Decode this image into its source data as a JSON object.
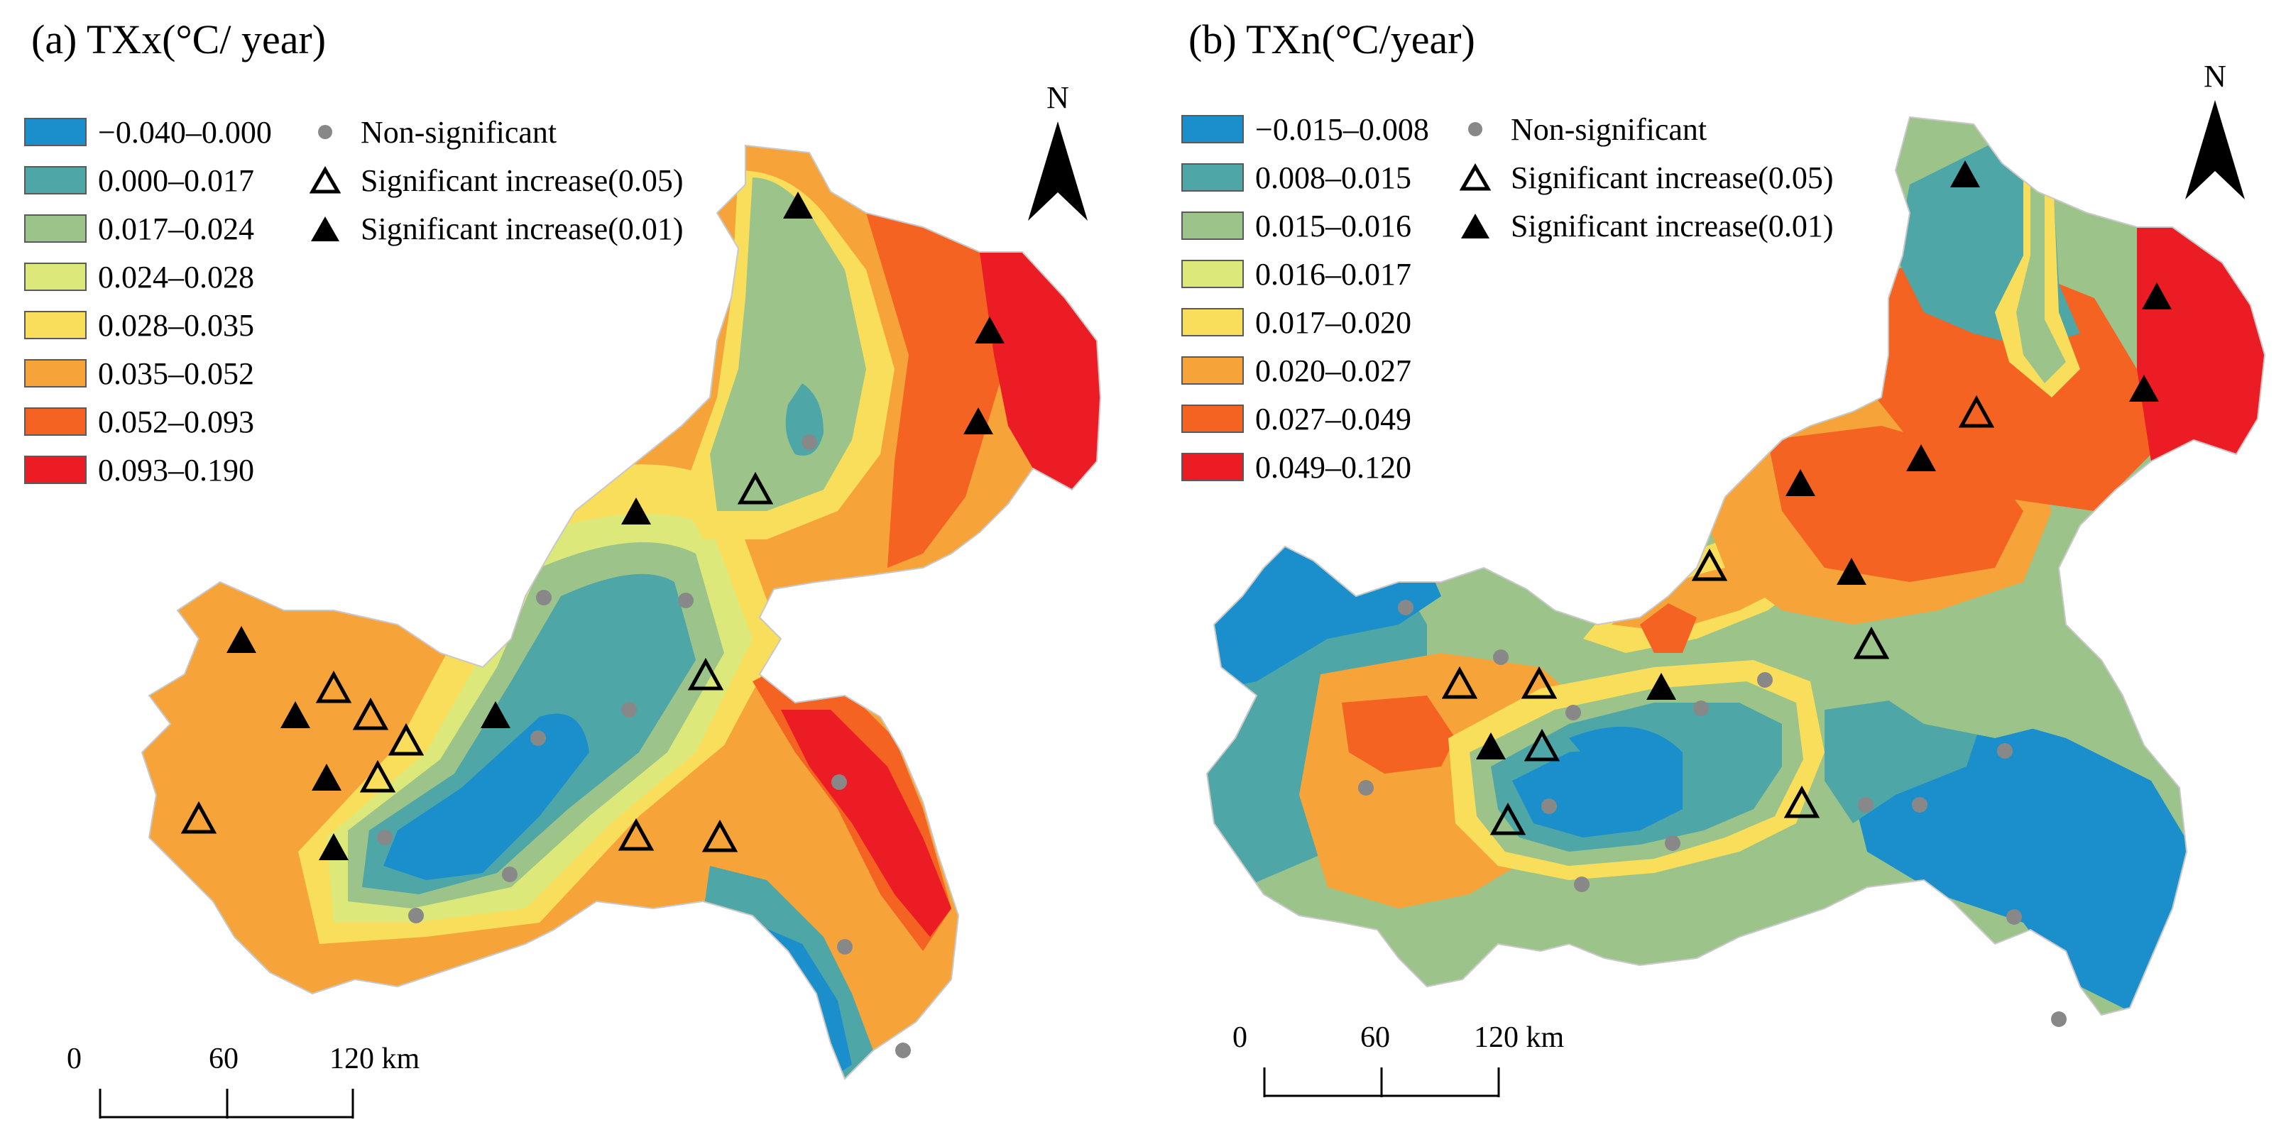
{
  "panels": [
    {
      "title": "(a) TXx(°C/ year)",
      "classes": [
        {
          "label": "−0.040–0.000",
          "color": "#1a8fcb"
        },
        {
          "label": "0.000–0.017",
          "color": "#4ea6a6"
        },
        {
          "label": "0.017–0.024",
          "color": "#9cc48a"
        },
        {
          "label": "0.024–0.028",
          "color": "#dde87a"
        },
        {
          "label": "0.028–0.035",
          "color": "#f8de5a"
        },
        {
          "label": "0.035–0.052",
          "color": "#f6a43a"
        },
        {
          "label": "0.052–0.093",
          "color": "#f46322"
        },
        {
          "label": "0.093–0.190",
          "color": "#ec1c24"
        }
      ],
      "symbols": [
        {
          "label": "Non-significant",
          "icon": "grey-dot-icon"
        },
        {
          "label": "Significant increase(0.05)",
          "icon": "hollow-triangle-icon"
        },
        {
          "label": "Significant increase(0.01)",
          "icon": "filled-triangle-icon"
        }
      ],
      "north": "N",
      "scale": {
        "ticks": [
          "0",
          "60",
          "120 km"
        ]
      }
    },
    {
      "title": "(b) TXn(°C/year)",
      "classes": [
        {
          "label": "−0.015–0.008",
          "color": "#1a8fcb"
        },
        {
          "label": "0.008–0.015",
          "color": "#4ea6a6"
        },
        {
          "label": "0.015–0.016",
          "color": "#9cc48a"
        },
        {
          "label": "0.016–0.017",
          "color": "#dde87a"
        },
        {
          "label": "0.017–0.020",
          "color": "#f8de5a"
        },
        {
          "label": "0.020–0.027",
          "color": "#f6a43a"
        },
        {
          "label": "0.027–0.049",
          "color": "#f46322"
        },
        {
          "label": "0.049–0.120",
          "color": "#ec1c24"
        }
      ],
      "symbols": [
        {
          "label": "Non-significant",
          "icon": "grey-dot-icon"
        },
        {
          "label": "Significant increase(0.05)",
          "icon": "hollow-triangle-icon"
        },
        {
          "label": "Significant increase(0.01)",
          "icon": "filled-triangle-icon"
        }
      ],
      "north": "N",
      "scale": {
        "ticks": [
          "0",
          "60",
          "120 km"
        ]
      }
    }
  ]
}
